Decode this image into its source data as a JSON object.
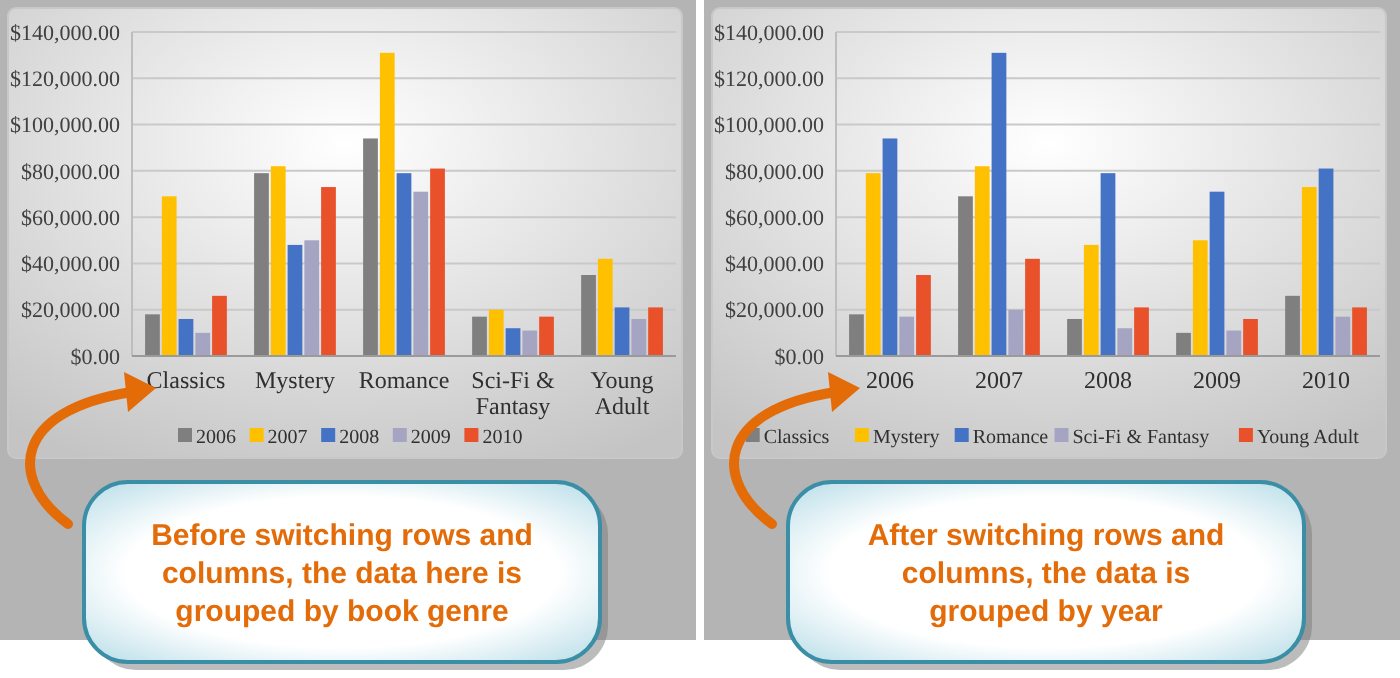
{
  "chart_data": [
    {
      "type": "bar",
      "categories": [
        "Classics",
        "Mystery",
        "Romance",
        "Sci-Fi & Fantasy",
        "Young Adult"
      ],
      "series": [
        {
          "name": "2006",
          "color": "#7f7f7f",
          "values": [
            18000,
            79000,
            94000,
            17000,
            35000
          ]
        },
        {
          "name": "2007",
          "color": "#ffc000",
          "values": [
            69000,
            82000,
            131000,
            20000,
            42000
          ]
        },
        {
          "name": "2008",
          "color": "#4472c4",
          "values": [
            16000,
            48000,
            79000,
            12000,
            21000
          ]
        },
        {
          "name": "2009",
          "color": "#a5a5c3",
          "values": [
            10000,
            50000,
            71000,
            11000,
            16000
          ]
        },
        {
          "name": "2010",
          "color": "#e8512a",
          "values": [
            26000,
            73000,
            81000,
            17000,
            21000
          ]
        }
      ],
      "ylim": [
        0,
        140000
      ],
      "yticks": [
        {
          "value": 0,
          "label": "$0.00"
        },
        {
          "value": 20000,
          "label": "$20,000.00"
        },
        {
          "value": 40000,
          "label": "$40,000.00"
        },
        {
          "value": 60000,
          "label": "$60,000.00"
        },
        {
          "value": 80000,
          "label": "$80,000.00"
        },
        {
          "value": 100000,
          "label": "$100,000.00"
        },
        {
          "value": 120000,
          "label": "$120,000.00"
        },
        {
          "value": 140000,
          "label": "$140,000.00"
        }
      ],
      "grid": "y",
      "legend": "bottom",
      "annotations": [
        "Before switching rows and columns, the data here is grouped by book genre"
      ]
    },
    {
      "type": "bar",
      "categories": [
        "2006",
        "2007",
        "2008",
        "2009",
        "2010"
      ],
      "series": [
        {
          "name": "Classics",
          "color": "#7f7f7f",
          "values": [
            18000,
            69000,
            16000,
            10000,
            26000
          ]
        },
        {
          "name": "Mystery",
          "color": "#ffc000",
          "values": [
            79000,
            82000,
            48000,
            50000,
            73000
          ]
        },
        {
          "name": "Romance",
          "color": "#4472c4",
          "values": [
            94000,
            131000,
            79000,
            71000,
            81000
          ]
        },
        {
          "name": "Sci-Fi & Fantasy",
          "color": "#a5a5c3",
          "values": [
            17000,
            20000,
            12000,
            11000,
            17000
          ]
        },
        {
          "name": "Young Adult",
          "color": "#e8512a",
          "values": [
            35000,
            42000,
            21000,
            16000,
            21000
          ]
        }
      ],
      "ylim": [
        0,
        140000
      ],
      "yticks": [
        {
          "value": 0,
          "label": "$0.00"
        },
        {
          "value": 20000,
          "label": "$20,000.00"
        },
        {
          "value": 40000,
          "label": "$40,000.00"
        },
        {
          "value": 60000,
          "label": "$60,000.00"
        },
        {
          "value": 80000,
          "label": "$80,000.00"
        },
        {
          "value": 100000,
          "label": "$100,000.00"
        },
        {
          "value": 120000,
          "label": "$120,000.00"
        },
        {
          "value": 140000,
          "label": "$140,000.00"
        }
      ],
      "grid": "y",
      "legend": "bottom",
      "annotations": [
        "After switching rows and columns, the data is grouped by year"
      ]
    }
  ]
}
